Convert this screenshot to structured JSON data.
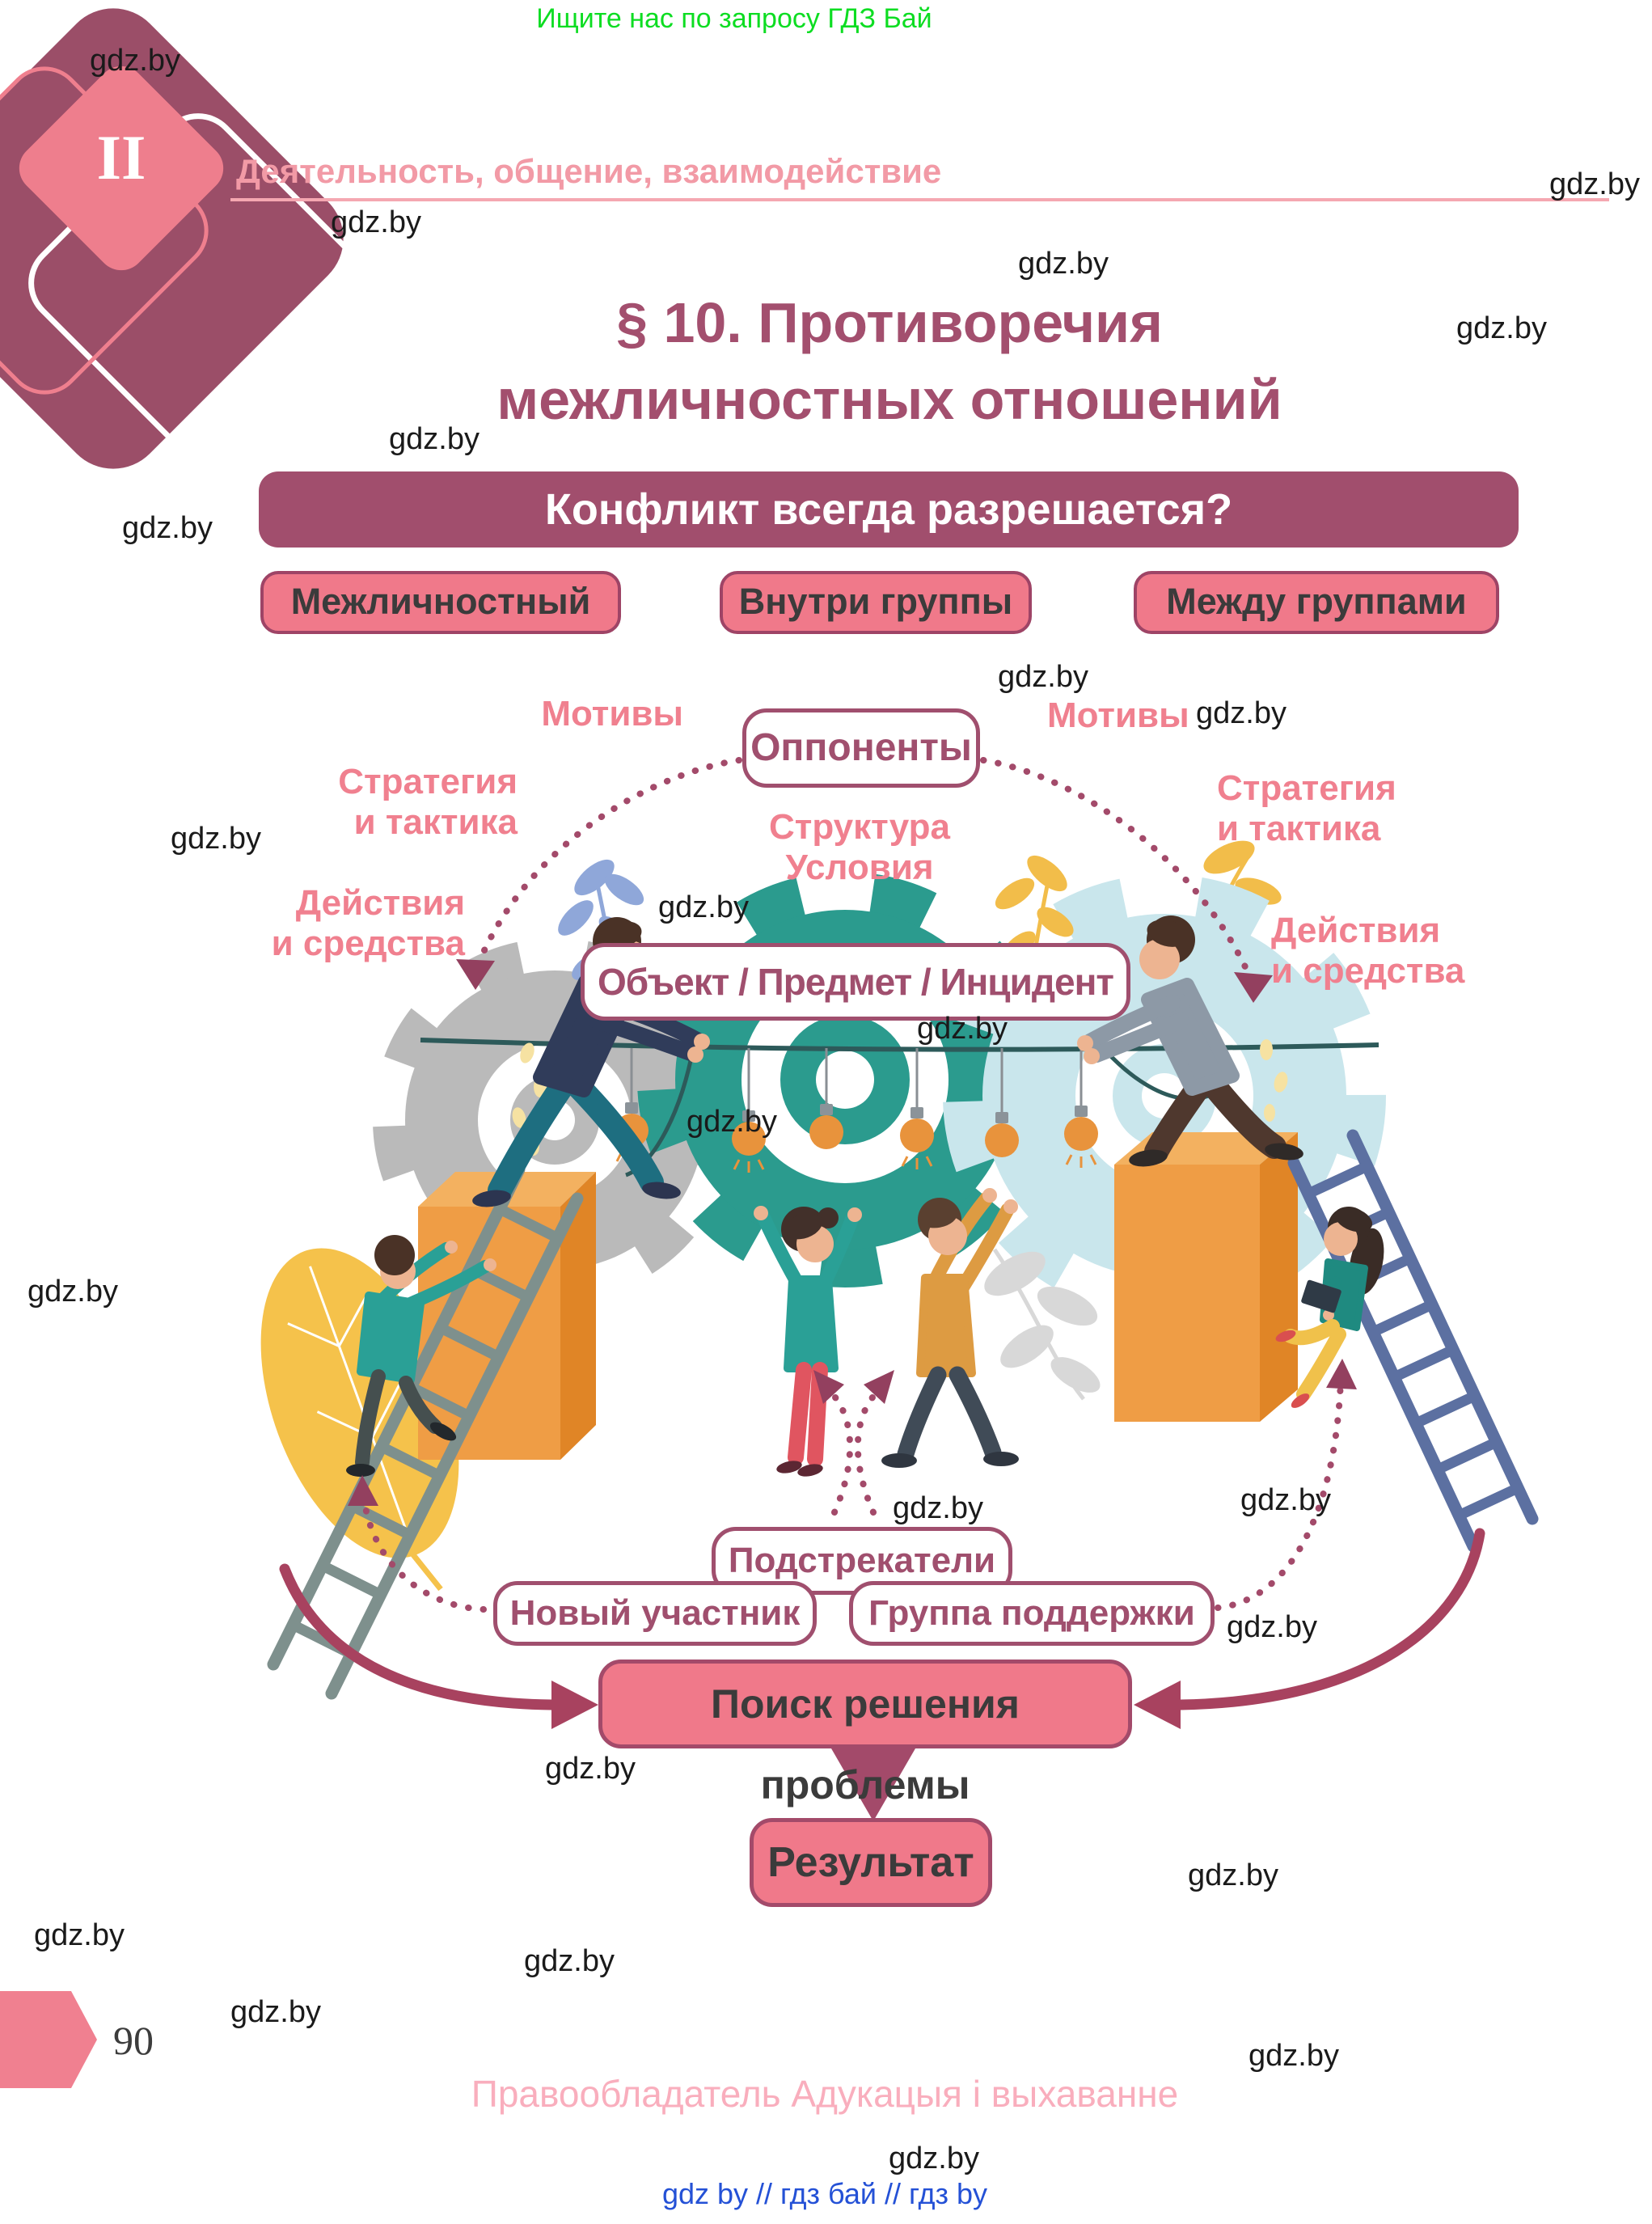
{
  "page": {
    "watermark": "gdz.by",
    "promo": "Ищите нас по запросу ГДЗ Бай"
  },
  "header": {
    "section_roman": "II",
    "chapter": "Деятельность, общение, взаимодействие"
  },
  "title": {
    "text": "§ 10. Противоречия\nмежличностных отношений"
  },
  "scheme": {
    "question": "Конфликт всегда разрешается?",
    "conflict_types": [
      "Межличностный",
      "Внутри группы",
      "Между группами"
    ],
    "left": {
      "motives": "Мотивы",
      "strategy": "Стратегия\nи тактика",
      "actions": "Действия\nи средства"
    },
    "right": {
      "motives": "Мотивы",
      "strategy": "Стратегия\nи тактика",
      "actions": "Действия\nи средства"
    },
    "opponents": "Оппоненты",
    "structure_conditions": "Структура\nУсловия",
    "object": "Объект / Предмет / Инцидент",
    "instigators": "Подстрекатели",
    "new_participant": "Новый участник",
    "support_group": "Группа поддержки",
    "search": "Поиск решения проблемы",
    "result": "Результат"
  },
  "footer": {
    "page_number": "90",
    "copyright": "Правообладатель Адукацыя і выхаванне",
    "links": "gdz by  //  гдз бай  //  гдз by"
  },
  "colors": {
    "dark_rose": "#a14e6d",
    "pink_fill": "#f0798a",
    "label_pink": "#f0808f",
    "text_dark": "#3b3b3b",
    "promo_green": "#0ddd22",
    "links_blue": "#2451d6",
    "footer_pink": "#f9aebd",
    "teal_gear": "#2b9b8e",
    "lightblue_gear": "#c9e6ec",
    "gray_gear": "#bababa",
    "orange_box": "#ef9d45",
    "watermark_black": "#1a1a1a"
  }
}
